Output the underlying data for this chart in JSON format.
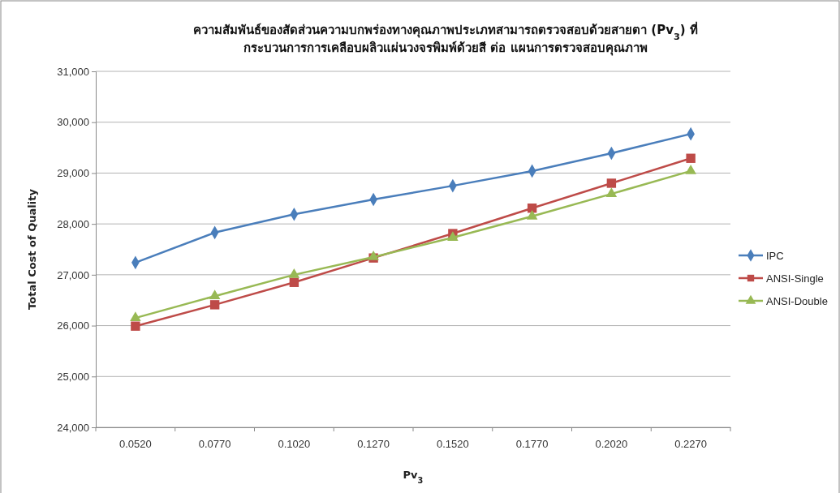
{
  "chart_data": {
    "type": "line",
    "title": "ความสัมพันธ์ของสัดส่วนความบกพร่องทางคุณภาพประเภทสามารถตรวจสอบด้วยสายตา (Pv$_{3}$) ที่\nกระบวนการการเคลือบผลิวแผ่นวงจรพิมพ์ด้วยสี ต่อ แผนการตรวจสอบคุณภาพ",
    "xlabel": "Pv$_{3}$",
    "ylabel": "Total Cost of Quality",
    "categories": [
      "0.0520",
      "0.0770",
      "0.1020",
      "0.1270",
      "0.1520",
      "0.1770",
      "0.2020",
      "0.2270"
    ],
    "series": [
      {
        "name": "IPC",
        "color": "#4a7ebb",
        "marker": "diamond",
        "values": [
          27240,
          27830,
          28190,
          28480,
          28750,
          29040,
          29390,
          29770
        ]
      },
      {
        "name": "ANSI-Single",
        "color": "#be4b48",
        "marker": "square",
        "values": [
          25990,
          26410,
          26850,
          27330,
          27810,
          28310,
          28800,
          29290
        ]
      },
      {
        "name": "ANSI-Double",
        "color": "#98b954",
        "marker": "triangle",
        "values": [
          26150,
          26580,
          27000,
          27350,
          27730,
          28150,
          28590,
          29040
        ]
      }
    ],
    "ylim": [
      24000,
      31000
    ],
    "yticks": [
      {
        "value": 24000,
        "label": "24,000"
      },
      {
        "value": 25000,
        "label": "25,000"
      },
      {
        "value": 26000,
        "label": "26,000"
      },
      {
        "value": 27000,
        "label": "27,000"
      },
      {
        "value": 28000,
        "label": "28,000"
      },
      {
        "value": 29000,
        "label": "29,000"
      },
      {
        "value": 30000,
        "label": "30,000"
      },
      {
        "value": 31000,
        "label": "31,000"
      }
    ],
    "grid": "y",
    "legend": "right",
    "line_style": "solid"
  }
}
